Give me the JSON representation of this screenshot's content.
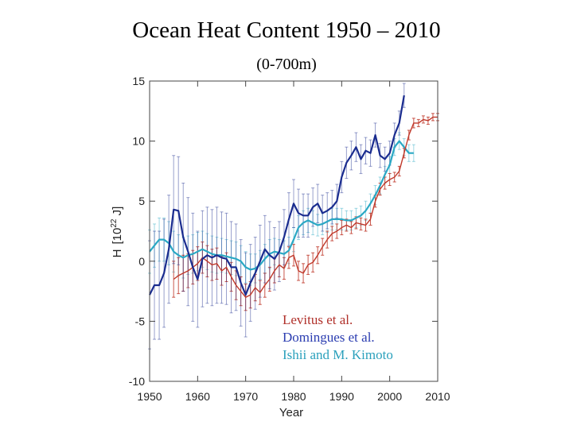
{
  "chart_data": {
    "type": "line",
    "title": "Ocean Heat Content 1950 – 2010",
    "subtitle": "(0-700m)",
    "xlabel": "Year",
    "ylabel": "H",
    "ylabel_unit": "[10",
    "ylabel_exp": "22",
    "ylabel_unit_end": " J]",
    "xlim": [
      1950,
      2010
    ],
    "ylim": [
      -10,
      15
    ],
    "xticks": [
      1950,
      1960,
      1970,
      1980,
      1990,
      2000,
      2010
    ],
    "yticks": [
      -10,
      -5,
      0,
      5,
      10,
      15
    ],
    "xtick_labels": [
      "1950",
      "1960",
      "1970",
      "1980",
      "1990",
      "2000",
      "2010"
    ],
    "ytick_labels": [
      "-10",
      "-5",
      "0",
      "5",
      "10",
      "15"
    ],
    "series": [
      {
        "name": "Levitus et al.",
        "color": "#c0392b",
        "x": [
          1955,
          1956,
          1957,
          1958,
          1959,
          1960,
          1961,
          1962,
          1963,
          1964,
          1965,
          1966,
          1967,
          1968,
          1969,
          1970,
          1971,
          1972,
          1973,
          1974,
          1975,
          1976,
          1977,
          1978,
          1979,
          1980,
          1981,
          1982,
          1983,
          1984,
          1985,
          1986,
          1987,
          1988,
          1989,
          1990,
          1991,
          1992,
          1993,
          1994,
          1995,
          1996,
          1997,
          1998,
          1999,
          2000,
          2001,
          2002,
          2003,
          2004,
          2005,
          2006,
          2007,
          2008,
          2009,
          2010
        ],
        "y": [
          -1.5,
          -1.2,
          -1.0,
          -0.8,
          -0.5,
          -0.2,
          0.3,
          0.0,
          -0.3,
          -0.2,
          -0.8,
          -0.5,
          -1.3,
          -2.0,
          -2.5,
          -3.0,
          -2.8,
          -2.2,
          -2.6,
          -2.0,
          -1.5,
          -0.8,
          -0.3,
          -0.6,
          0.3,
          0.5,
          -0.8,
          -1.0,
          -0.3,
          -0.1,
          0.5,
          1.2,
          1.8,
          2.3,
          2.5,
          2.8,
          3.0,
          2.8,
          3.2,
          3.1,
          3.0,
          3.5,
          5.0,
          6.0,
          6.5,
          6.8,
          7.0,
          7.5,
          9.0,
          10.5,
          11.5,
          11.5,
          11.8,
          11.7,
          12.0,
          12.0
        ],
        "err": [
          1.5,
          1.5,
          1.5,
          1.4,
          1.4,
          1.4,
          1.3,
          1.3,
          1.3,
          1.3,
          1.2,
          1.2,
          1.2,
          1.2,
          1.2,
          1.1,
          1.1,
          1.1,
          1.0,
          1.0,
          1.0,
          1.0,
          1.0,
          0.9,
          0.9,
          0.9,
          0.8,
          0.8,
          0.8,
          0.8,
          0.7,
          0.7,
          0.7,
          0.6,
          0.6,
          0.6,
          0.5,
          0.5,
          0.5,
          0.5,
          0.5,
          0.5,
          0.5,
          0.5,
          0.5,
          0.5,
          0.4,
          0.4,
          0.4,
          0.4,
          0.4,
          0.3,
          0.3,
          0.3,
          0.3,
          0.3
        ]
      },
      {
        "name": "Domingues et al.",
        "color": "#1a2c8f",
        "x": [
          1950,
          1951,
          1952,
          1953,
          1954,
          1955,
          1956,
          1957,
          1958,
          1959,
          1960,
          1961,
          1962,
          1963,
          1964,
          1965,
          1966,
          1967,
          1968,
          1969,
          1970,
          1971,
          1972,
          1973,
          1974,
          1975,
          1976,
          1977,
          1978,
          1979,
          1980,
          1981,
          1982,
          1983,
          1984,
          1985,
          1986,
          1987,
          1988,
          1989,
          1990,
          1991,
          1992,
          1993,
          1994,
          1995,
          1996,
          1997,
          1998,
          1999,
          2000,
          2001,
          2002,
          2003
        ],
        "y": [
          -2.8,
          -2.0,
          -2.0,
          -1.0,
          1.0,
          4.3,
          4.2,
          2.0,
          0.8,
          -0.5,
          -1.5,
          0.2,
          0.5,
          0.3,
          0.5,
          0.3,
          0.2,
          -0.5,
          -0.5,
          -1.8,
          -2.8,
          -1.8,
          -1.0,
          0.0,
          1.0,
          0.5,
          0.2,
          0.8,
          2.0,
          3.5,
          4.8,
          4.0,
          3.8,
          3.8,
          4.5,
          4.8,
          4.0,
          4.2,
          4.5,
          5.0,
          7.0,
          8.2,
          8.8,
          9.5,
          8.5,
          9.2,
          9.0,
          10.5,
          8.8,
          8.5,
          9.0,
          10.5,
          11.5,
          13.8
        ],
        "err": [
          4.5,
          4.5,
          4.5,
          4.5,
          4.5,
          4.5,
          4.5,
          4.5,
          4.5,
          4.5,
          4.0,
          4.0,
          4.0,
          4.0,
          4.0,
          3.8,
          3.8,
          3.8,
          3.6,
          3.6,
          3.5,
          3.2,
          3.0,
          3.0,
          2.8,
          2.8,
          2.6,
          2.5,
          2.3,
          2.2,
          2.0,
          2.0,
          1.8,
          1.8,
          1.6,
          1.6,
          1.5,
          1.5,
          1.4,
          1.4,
          1.3,
          1.3,
          1.2,
          1.2,
          1.2,
          1.1,
          1.1,
          1.0,
          1.0,
          1.0,
          1.0,
          1.0,
          1.0,
          1.0
        ]
      },
      {
        "name": "Ishii and M. Kimoto",
        "color": "#2aa8c4",
        "x": [
          1950,
          1951,
          1952,
          1953,
          1954,
          1955,
          1956,
          1957,
          1958,
          1959,
          1960,
          1961,
          1962,
          1963,
          1964,
          1965,
          1966,
          1967,
          1968,
          1969,
          1970,
          1971,
          1972,
          1973,
          1974,
          1975,
          1976,
          1977,
          1978,
          1979,
          1980,
          1981,
          1982,
          1983,
          1984,
          1985,
          1986,
          1987,
          1988,
          1989,
          1990,
          1991,
          1992,
          1993,
          1994,
          1995,
          1996,
          1997,
          1998,
          1999,
          2000,
          2001,
          2002,
          2003,
          2004,
          2005
        ],
        "y": [
          0.8,
          1.3,
          1.8,
          1.8,
          1.5,
          0.8,
          0.5,
          0.3,
          0.5,
          0.6,
          0.8,
          1.0,
          0.8,
          0.6,
          0.5,
          0.5,
          0.4,
          0.3,
          0.2,
          0.0,
          -0.5,
          -0.7,
          -0.6,
          -0.3,
          0.2,
          0.6,
          0.8,
          0.7,
          0.6,
          0.9,
          1.8,
          2.8,
          3.2,
          3.4,
          3.2,
          3.0,
          3.1,
          3.3,
          3.5,
          3.5,
          3.5,
          3.4,
          3.4,
          3.6,
          3.8,
          4.2,
          4.8,
          5.5,
          6.3,
          7.2,
          8.0,
          9.5,
          10.0,
          9.5,
          9.0,
          9.0
        ],
        "err": [
          1.8,
          1.8,
          1.8,
          1.8,
          1.8,
          1.7,
          1.7,
          1.7,
          1.6,
          1.6,
          1.6,
          1.5,
          1.5,
          1.5,
          1.5,
          1.4,
          1.4,
          1.4,
          1.4,
          1.3,
          1.3,
          1.3,
          1.2,
          1.2,
          1.2,
          1.2,
          1.1,
          1.1,
          1.1,
          1.1,
          1.0,
          1.0,
          1.0,
          1.0,
          1.0,
          0.9,
          0.9,
          0.9,
          0.9,
          0.9,
          0.9,
          0.8,
          0.8,
          0.8,
          0.8,
          0.8,
          0.8,
          0.8,
          0.7,
          0.7,
          0.7,
          0.7,
          0.7,
          0.7,
          0.7,
          0.7
        ]
      }
    ],
    "legend_position": "bottom-right"
  }
}
